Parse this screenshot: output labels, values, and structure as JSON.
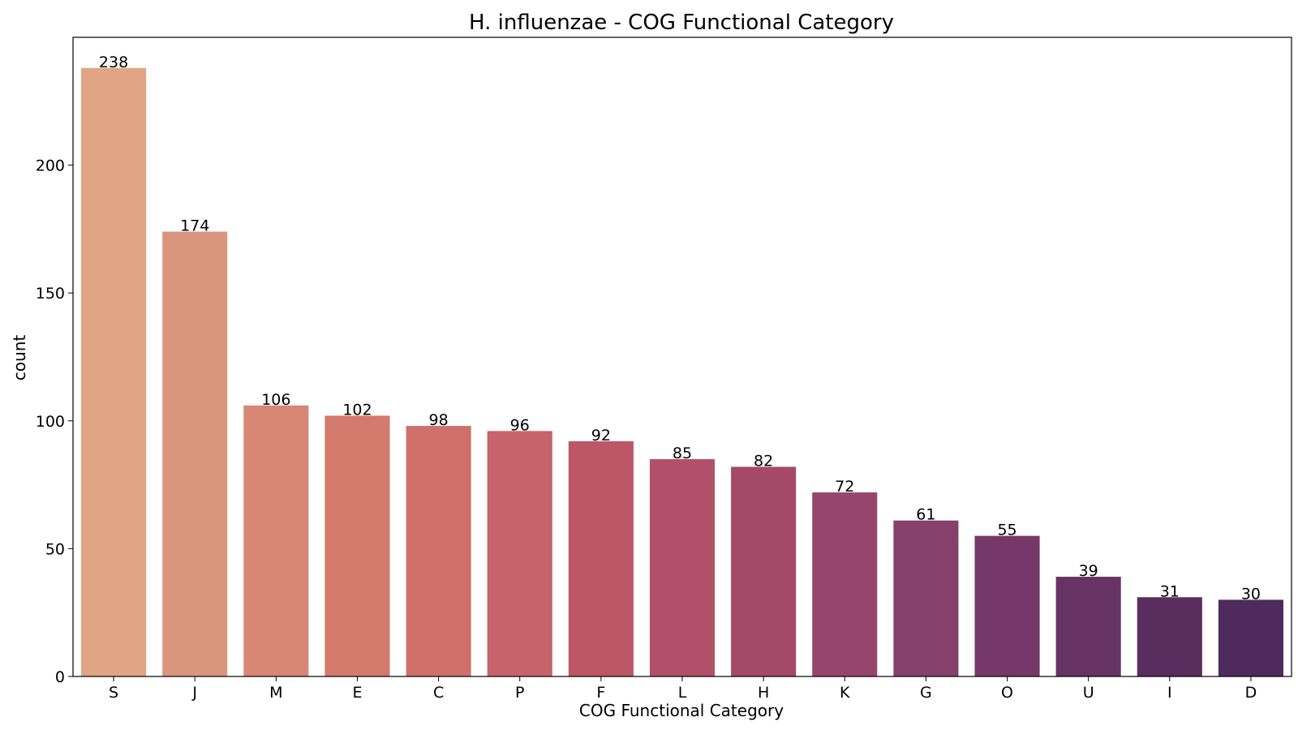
{
  "chart_data": {
    "type": "bar",
    "title": "H. influenzae - COG Functional Category",
    "xlabel": "COG Functional Category",
    "ylabel": "count",
    "categories": [
      "S",
      "J",
      "M",
      "E",
      "C",
      "P",
      "F",
      "L",
      "H",
      "K",
      "G",
      "O",
      "U",
      "I",
      "D"
    ],
    "values": [
      238,
      174,
      106,
      102,
      98,
      96,
      92,
      85,
      82,
      72,
      61,
      55,
      39,
      31,
      30
    ],
    "ylim": [
      0,
      250
    ],
    "yticks": [
      0,
      50,
      100,
      150,
      200
    ],
    "grid": false,
    "legend": "none",
    "colors": [
      "#e0a584",
      "#da967c",
      "#d88676",
      "#d47a6c",
      "#cf706b",
      "#c7636a",
      "#bd5768",
      "#b24f69",
      "#a54969",
      "#96466d",
      "#85406c",
      "#763868",
      "#663364",
      "#5a2d5f",
      "#4f2a5c"
    ]
  }
}
